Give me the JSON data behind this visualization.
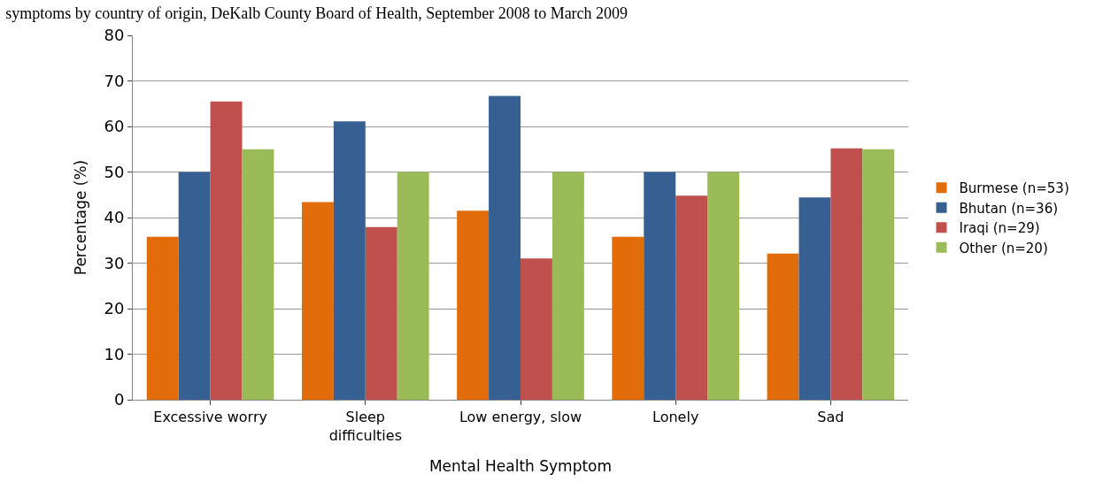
{
  "chart_data": {
    "type": "bar",
    "title": "symptoms by country of origin, DeKalb County Board of Health, September 2008 to March 2009",
    "xlabel": "Mental Health Symptom",
    "ylabel": "Percentage (%)",
    "categories": [
      "Excessive worry",
      "Sleep difficulties",
      "Low energy, slow",
      "Lonely",
      "Sad"
    ],
    "series": [
      {
        "name": "Burmese (n=53)",
        "color": "#e36c0a",
        "values": [
          35.8,
          43.4,
          41.5,
          35.8,
          32.1
        ]
      },
      {
        "name": "Bhutan (n=36)",
        "color": "#366092",
        "values": [
          50,
          61.1,
          66.7,
          50,
          44.4
        ]
      },
      {
        "name": "Iraqi (n=29)",
        "color": "#c0504d",
        "values": [
          65.5,
          37.9,
          31.0,
          44.8,
          55.2
        ]
      },
      {
        "name": "Other (n=20)",
        "color": "#9bbb59",
        "values": [
          55,
          50,
          50,
          50,
          55
        ]
      }
    ],
    "ylim": [
      0,
      80
    ],
    "yticks": [
      0,
      10,
      20,
      30,
      40,
      50,
      60,
      70,
      80
    ],
    "grid": "y",
    "legend": "right"
  }
}
